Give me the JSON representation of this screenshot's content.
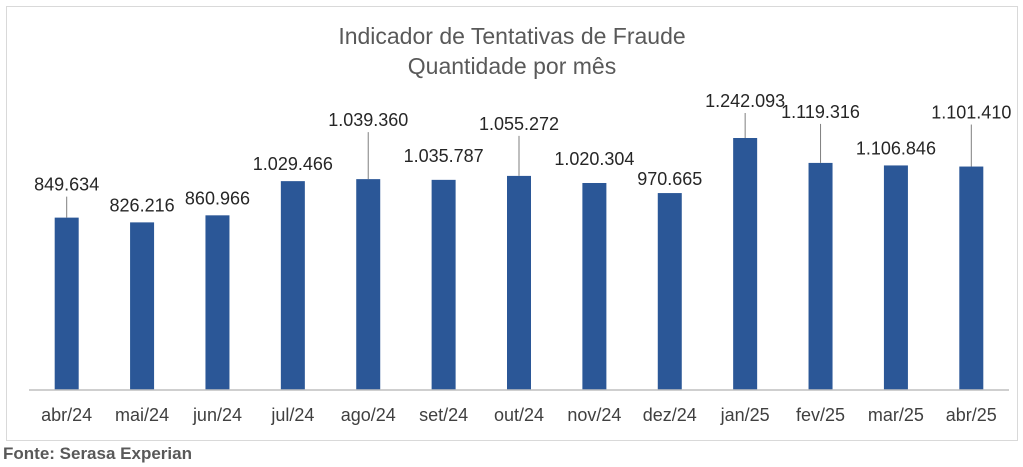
{
  "chart_data": {
    "type": "bar",
    "title": "Indicador de Tentativas de Fraude",
    "subtitle": "Quantidade por mês",
    "categories": [
      "abr/24",
      "mai/24",
      "jun/24",
      "jul/24",
      "ago/24",
      "set/24",
      "out/24",
      "nov/24",
      "dez/24",
      "jan/25",
      "fev/25",
      "mar/25",
      "abr/25"
    ],
    "values": [
      849634,
      826216,
      860966,
      1029466,
      1039360,
      1035787,
      1055272,
      1020304,
      970665,
      1242093,
      1119316,
      1106846,
      1101410
    ],
    "value_labels": [
      "849.634",
      "826.216",
      "860.966",
      "1.029.466",
      "1.039.360",
      "1.035.787",
      "1.055.272",
      "1.020.304",
      "970.665",
      "1.242.093",
      "1.119.316",
      "1.106.846",
      "1.101.410"
    ],
    "ylim": [
      0,
      1400000
    ],
    "grid": false,
    "legend": "none",
    "bar_color": "#2B5797",
    "axis_color": "#bfbfbf"
  },
  "source": "Fonte: Serasa Experian"
}
